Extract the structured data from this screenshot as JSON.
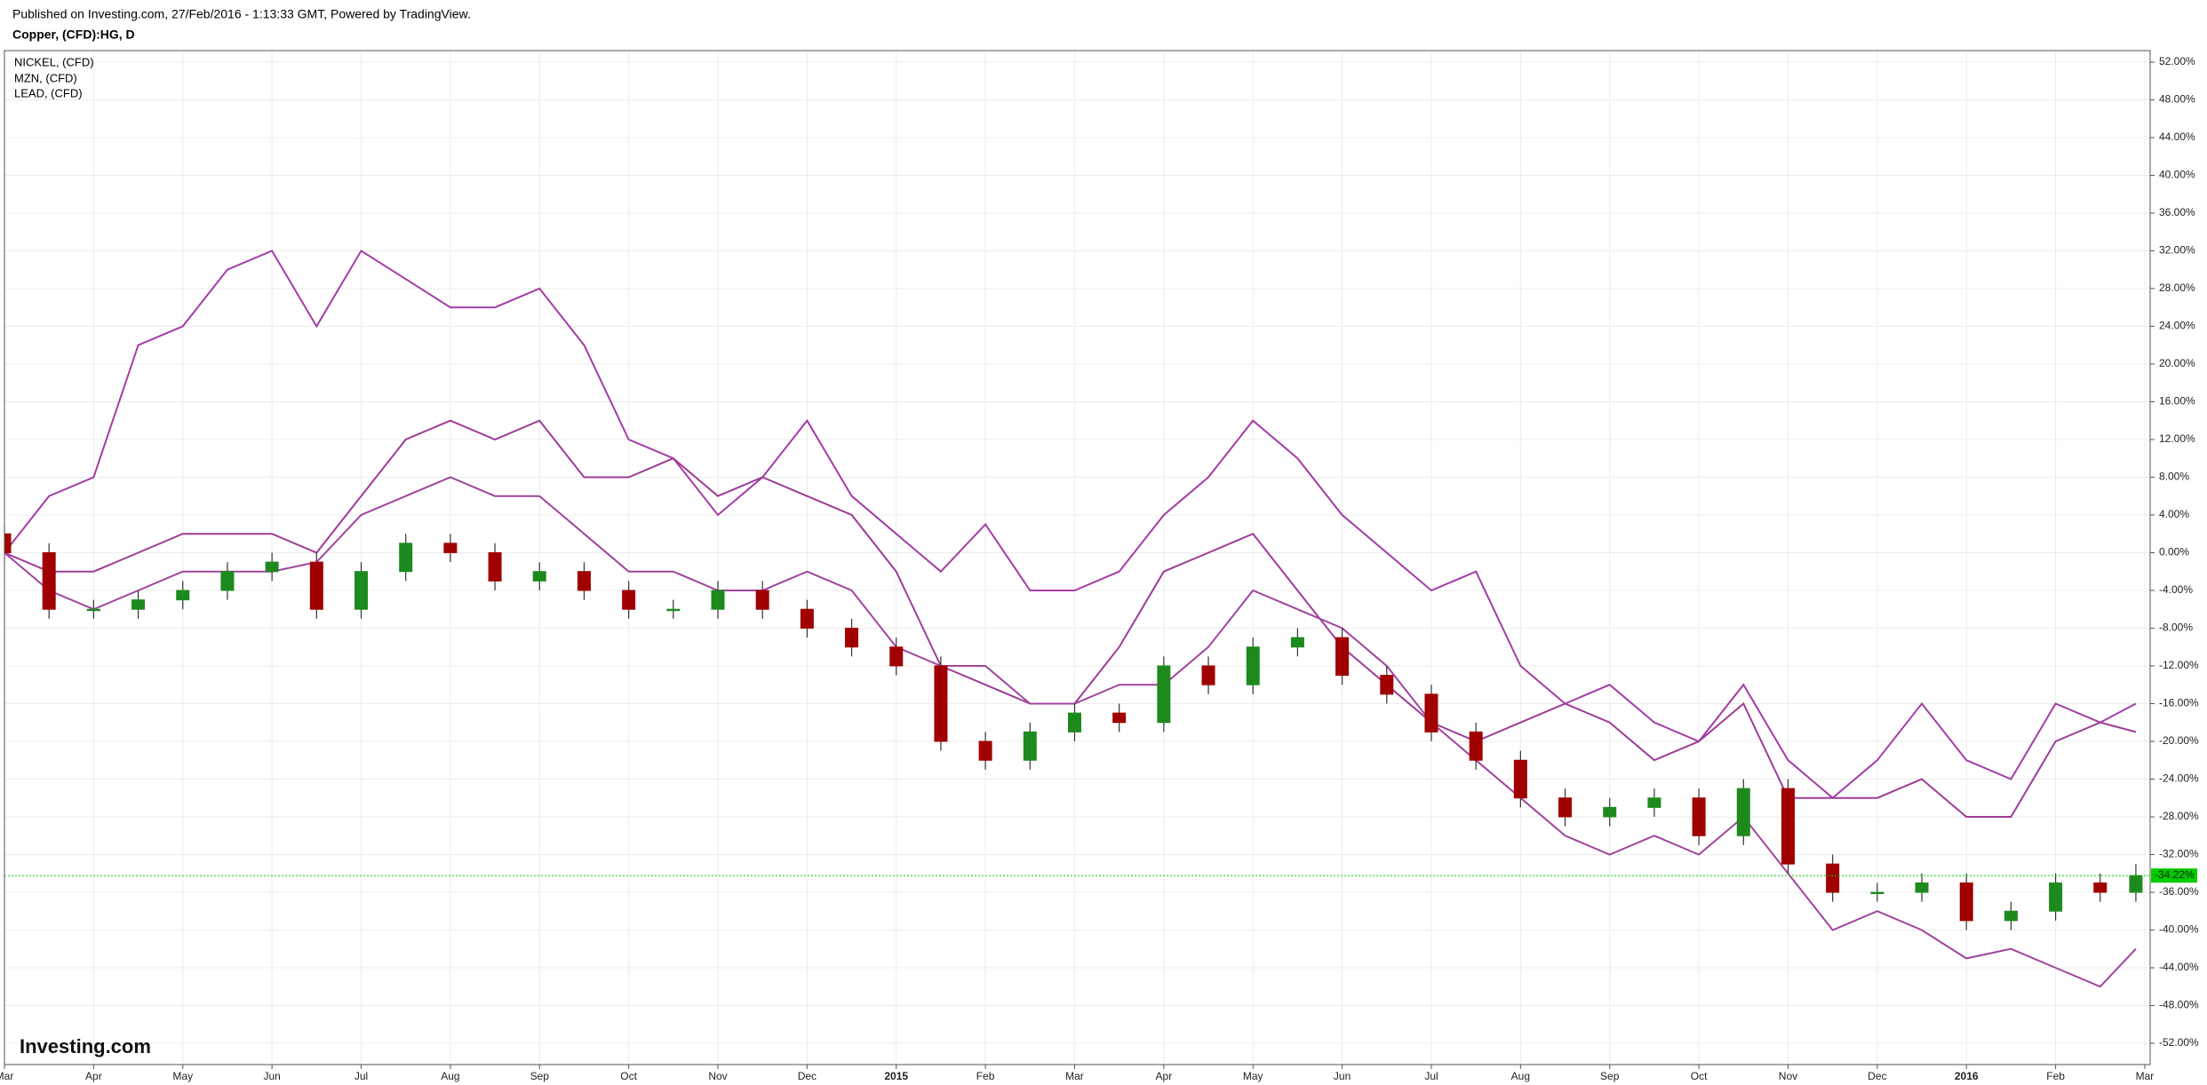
{
  "chart_data": {
    "type": "candlestick",
    "published": "Published on Investing.com, 27/Feb/2016 - 1:13:33 GMT, Powered by TradingView.",
    "title": "Copper, (CFD):HG, D",
    "watermark": "Investing.com",
    "x": [
      0,
      0.5,
      1,
      1.5,
      2,
      2.5,
      3,
      3.5,
      4,
      4.5,
      5,
      5.5,
      6,
      6.5,
      7,
      7.5,
      8,
      8.5,
      9,
      9.5,
      10,
      10.5,
      11,
      11.5,
      12,
      12.5,
      13,
      13.5,
      14,
      14.5,
      15,
      15.5,
      16,
      16.5,
      17,
      17.5,
      18,
      18.5,
      19,
      19.5,
      20,
      20.5,
      21,
      21.5,
      22,
      22.5,
      23,
      23.5,
      23.9
    ],
    "main": {
      "up_color": "#1e8a1e",
      "down_color": "#a00000",
      "open": [
        2,
        0,
        -6,
        -6,
        -5,
        -4,
        -2,
        -1,
        -6,
        -2,
        1,
        0,
        -3,
        -2,
        -4,
        -6,
        -6,
        -4,
        -6,
        -8,
        -10,
        -12,
        -20,
        -22,
        -19,
        -17,
        -18,
        -12,
        -14,
        -10,
        -9,
        -13,
        -15,
        -19,
        -22,
        -26,
        -28,
        -27,
        -26,
        -30,
        -25,
        -33,
        -36,
        -36,
        -35,
        -39,
        -38,
        -35,
        -36
      ],
      "high": [
        3,
        1,
        -5,
        -4,
        -3,
        -1,
        0,
        0,
        -1,
        2,
        2,
        1,
        -1,
        -1,
        -3,
        -5,
        -3,
        -3,
        -5,
        -7,
        -9,
        -11,
        -19,
        -18,
        -16,
        -16,
        -11,
        -11,
        -9,
        -8,
        -8,
        -12,
        -14,
        -18,
        -21,
        -25,
        -26,
        -25,
        -25,
        -24,
        -24,
        -32,
        -35,
        -34,
        -34,
        -37,
        -34,
        -34,
        -33
      ],
      "low": [
        -1,
        -7,
        -7,
        -7,
        -6,
        -5,
        -3,
        -7,
        -7,
        -3,
        -1,
        -4,
        -4,
        -5,
        -7,
        -7,
        -7,
        -7,
        -9,
        -11,
        -13,
        -21,
        -23,
        -23,
        -20,
        -19,
        -19,
        -15,
        -15,
        -11,
        -14,
        -16,
        -20,
        -23,
        -27,
        -29,
        -29,
        -28,
        -31,
        -31,
        -34,
        -37,
        -37,
        -37,
        -40,
        -40,
        -39,
        -37,
        -37
      ],
      "close": [
        0,
        -6,
        -6,
        -5,
        -4,
        -2,
        -1,
        -6,
        -2,
        1,
        0,
        -3,
        -2,
        -4,
        -6,
        -6,
        -4,
        -6,
        -8,
        -10,
        -12,
        -20,
        -22,
        -19,
        -17,
        -18,
        -12,
        -14,
        -10,
        -9,
        -13,
        -15,
        -19,
        -22,
        -26,
        -28,
        -27,
        -26,
        -30,
        -25,
        -33,
        -36,
        -36,
        -35,
        -39,
        -38,
        -35,
        -36,
        -34.22
      ]
    },
    "series": [
      {
        "name": "NICKEL,  (CFD)",
        "color": "#a43ca6",
        "values": [
          0,
          6,
          8,
          22,
          24,
          30,
          32,
          24,
          32,
          29,
          26,
          26,
          28,
          22,
          12,
          10,
          4,
          8,
          14,
          6,
          2,
          -2,
          3,
          -4,
          -4,
          -2,
          4,
          8,
          14,
          10,
          4,
          0,
          -4,
          -2,
          -12,
          -16,
          -14,
          -18,
          -20,
          -14,
          -22,
          -26,
          -22,
          -16,
          -22,
          -24,
          -16,
          -18,
          -16
        ]
      },
      {
        "name": "MZN,  (CFD)",
        "color": "#9e3c96",
        "values": [
          0,
          -2,
          -2,
          0,
          2,
          2,
          2,
          0,
          6,
          12,
          14,
          12,
          14,
          8,
          8,
          10,
          6,
          8,
          6,
          4,
          -2,
          -12,
          -14,
          -16,
          -16,
          -10,
          -2,
          0,
          2,
          -4,
          -10,
          -14,
          -18,
          -20,
          -18,
          -16,
          -18,
          -22,
          -20,
          -16,
          -26,
          -26,
          -26,
          -24,
          -28,
          -28,
          -20,
          -18,
          -19
        ]
      },
      {
        "name": "LEAD,  (CFD)",
        "color": "#a0449e",
        "values": [
          0,
          -4,
          -6,
          -4,
          -2,
          -2,
          -2,
          -1,
          4,
          6,
          8,
          6,
          6,
          2,
          -2,
          -2,
          -4,
          -4,
          -2,
          -4,
          -10,
          -12,
          -12,
          -16,
          -16,
          -14,
          -14,
          -10,
          -4,
          -6,
          -8,
          -12,
          -18,
          -22,
          -26,
          -30,
          -32,
          -30,
          -32,
          -28,
          -34,
          -40,
          -38,
          -40,
          -43,
          -42,
          -44,
          -46,
          -42
        ]
      }
    ],
    "last": {
      "value": -34.22,
      "label": "-34.22%",
      "color": "#00cc00"
    },
    "xlim": [
      0,
      24.06
    ],
    "xticks": [
      {
        "value": 0,
        "label": "Mar"
      },
      {
        "value": 1,
        "label": "Apr"
      },
      {
        "value": 2,
        "label": "May"
      },
      {
        "value": 3,
        "label": "Jun"
      },
      {
        "value": 4,
        "label": "Jul"
      },
      {
        "value": 5,
        "label": "Aug"
      },
      {
        "value": 6,
        "label": "Sep"
      },
      {
        "value": 7,
        "label": "Oct"
      },
      {
        "value": 8,
        "label": "Nov"
      },
      {
        "value": 9,
        "label": "Dec"
      },
      {
        "value": 10,
        "label": "2015"
      },
      {
        "value": 11,
        "label": "Feb"
      },
      {
        "value": 12,
        "label": "Mar"
      },
      {
        "value": 13,
        "label": "Apr"
      },
      {
        "value": 14,
        "label": "May"
      },
      {
        "value": 15,
        "label": "Jun"
      },
      {
        "value": 16,
        "label": "Jul"
      },
      {
        "value": 17,
        "label": "Aug"
      },
      {
        "value": 18,
        "label": "Sep"
      },
      {
        "value": 19,
        "label": "Oct"
      },
      {
        "value": 20,
        "label": "Nov"
      },
      {
        "value": 21,
        "label": "Dec"
      },
      {
        "value": 22,
        "label": "2016"
      },
      {
        "value": 23,
        "label": "Feb"
      },
      {
        "value": 24,
        "label": "Mar"
      }
    ],
    "ylim": [
      -54.26,
      53.22
    ],
    "yticks": [
      {
        "value": 52,
        "label": "52.00%"
      },
      {
        "value": 48,
        "label": "48.00%"
      },
      {
        "value": 44,
        "label": "44.00%"
      },
      {
        "value": 40,
        "label": "40.00%"
      },
      {
        "value": 36,
        "label": "36.00%"
      },
      {
        "value": 32,
        "label": "32.00%"
      },
      {
        "value": 28,
        "label": "28.00%"
      },
      {
        "value": 24,
        "label": "24.00%"
      },
      {
        "value": 20,
        "label": "20.00%"
      },
      {
        "value": 16,
        "label": "16.00%"
      },
      {
        "value": 12,
        "label": "12.00%"
      },
      {
        "value": 8,
        "label": "8.00%"
      },
      {
        "value": 4,
        "label": "4.00%"
      },
      {
        "value": 0,
        "label": "0.00%"
      },
      {
        "value": -4,
        "label": "-4.00%"
      },
      {
        "value": -8,
        "label": "-8.00%"
      },
      {
        "value": -12,
        "label": "-12.00%"
      },
      {
        "value": -16,
        "label": "-16.00%"
      },
      {
        "value": -20,
        "label": "-20.00%"
      },
      {
        "value": -24,
        "label": "-24.00%"
      },
      {
        "value": -28,
        "label": "-28.00%"
      },
      {
        "value": -32,
        "label": "-32.00%"
      },
      {
        "value": -36,
        "label": "-36.00%"
      },
      {
        "value": -40,
        "label": "-40.00%"
      },
      {
        "value": -44,
        "label": "-44.00%"
      },
      {
        "value": -48,
        "label": "-48.00%"
      },
      {
        "value": -52,
        "label": "-52.00%"
      }
    ],
    "grid": true
  }
}
